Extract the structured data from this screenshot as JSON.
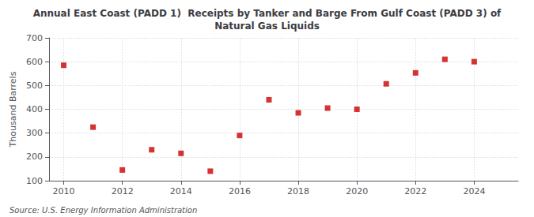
{
  "chart_data": {
    "type": "scatter",
    "title": "Annual East Coast (PADD 1)  Receipts by Tanker and Barge From Gulf Coast (PADD 3) of\nNatural Gas Liquids",
    "ylabel": "Thousand Barrels",
    "source": "Source: U.S. Energy Information Administration",
    "x": [
      2010,
      2011,
      2012,
      2013,
      2014,
      2015,
      2016,
      2017,
      2018,
      2019,
      2020,
      2021,
      2022,
      2023,
      2024
    ],
    "values": [
      585,
      325,
      145,
      230,
      215,
      140,
      290,
      440,
      385,
      405,
      400,
      507,
      553,
      610,
      600
    ],
    "color": "#cc0000",
    "marker": "square",
    "xlim": [
      2009.5,
      2025.5
    ],
    "xticks": [
      2010,
      2012,
      2014,
      2016,
      2018,
      2020,
      2022,
      2024
    ],
    "ylim": [
      100,
      700
    ],
    "yticks": [
      100,
      200,
      300,
      400,
      500,
      600,
      700
    ],
    "grid": true
  }
}
